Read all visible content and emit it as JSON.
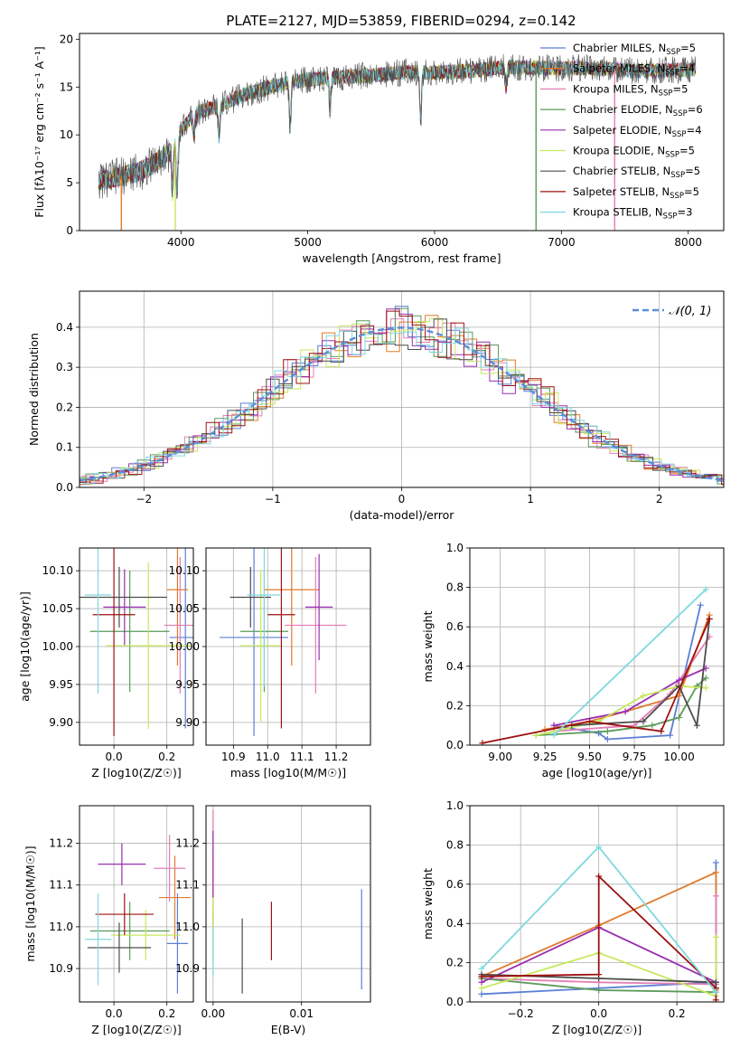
{
  "figure": {
    "title": "PLATE=2127, MJD=53859, FIBERID=0294, z=0.142"
  },
  "series": [
    {
      "name": "Chabrier MILES",
      "nssp": "5",
      "color": "#5b7fd6"
    },
    {
      "name": "Salpeter MILES",
      "nssp": "4",
      "color": "#e07b2d"
    },
    {
      "name": "Kroupa MILES",
      "nssp": "5",
      "color": "#e37fb5"
    },
    {
      "name": "Chabrier ELODIE",
      "nssp": "6",
      "color": "#5a9a5a"
    },
    {
      "name": "Salpeter ELODIE",
      "nssp": "4",
      "color": "#9a2eb0"
    },
    {
      "name": "Kroupa ELODIE",
      "nssp": "5",
      "color": "#c6e85c"
    },
    {
      "name": "Chabrier STELIB",
      "nssp": "5",
      "color": "#4d4d4d"
    },
    {
      "name": "Salpeter STELIB",
      "nssp": "5",
      "color": "#9e1010"
    },
    {
      "name": "Kroupa STELIB",
      "nssp": "3",
      "color": "#7fd8de"
    }
  ],
  "chart_data": [
    {
      "id": "spectrum",
      "type": "line",
      "title": "PLATE=2127, MJD=53859, FIBERID=0294, z=0.142",
      "xlabel": "wavelength [Angstrom, rest frame]",
      "ylabel": "Flux [fλ10⁻¹⁷ erg cm⁻² s⁻¹ A⁻¹]",
      "xlim": [
        3200,
        8280
      ],
      "ylim": [
        0,
        20.6
      ],
      "xticks": [
        4000,
        5000,
        6000,
        7000,
        8000
      ],
      "yticks": [
        0,
        5,
        10,
        15,
        20
      ],
      "continuum": {
        "x": [
          3350,
          3500,
          3700,
          3900,
          4000,
          4100,
          4300,
          4500,
          4700,
          4860,
          5000,
          5200,
          5500,
          5800,
          6000,
          6300,
          6563,
          6800,
          7200,
          7600,
          8000
        ],
        "y": [
          5.2,
          5.6,
          6.3,
          8.0,
          10.4,
          12.2,
          13.0,
          14.2,
          15.0,
          15.5,
          15.8,
          16.0,
          16.2,
          16.6,
          16.5,
          16.7,
          17.1,
          17.0,
          17.0,
          16.7,
          16.8
        ]
      },
      "legend": "upper right"
    },
    {
      "id": "residuals",
      "type": "line",
      "xlabel": "(data-model)/error",
      "ylabel": "Normed distribution",
      "xlim": [
        -2.5,
        2.5
      ],
      "ylim": [
        0,
        0.49
      ],
      "xticks": [
        -2,
        -1,
        0,
        1,
        2
      ],
      "yticks": [
        0.0,
        0.1,
        0.2,
        0.3,
        0.4
      ],
      "gaussian_label": "𝒩(0, 1)",
      "gaussian_color": "#5b8fd9",
      "legend": "upper right"
    },
    {
      "id": "age-vs-Z",
      "type": "scatter",
      "xlabel": "Z [log10(Z/Z☉)]",
      "ylabel": "age [log10(age/yr)]",
      "xlim": [
        -0.13,
        0.3
      ],
      "ylim": [
        9.87,
        10.13
      ],
      "xticks": [
        0.0,
        0.2
      ],
      "yticks": [
        9.9,
        9.95,
        10.0,
        10.05,
        10.1
      ],
      "points": [
        {
          "x": 0.27,
          "y": 10.012,
          "xerr": 0.06,
          "yerr": 0.12
        },
        {
          "x": 0.24,
          "y": 10.075,
          "xerr": 0.04,
          "yerr": 0.1
        },
        {
          "x": 0.25,
          "y": 10.028,
          "xerr": 0.06,
          "yerr": 0.09
        },
        {
          "x": 0.06,
          "y": 10.02,
          "xerr": 0.15,
          "yerr": 0.08
        },
        {
          "x": 0.04,
          "y": 10.052,
          "xerr": 0.08,
          "yerr": 0.05
        },
        {
          "x": 0.13,
          "y": 10.001,
          "xerr": 0.16,
          "yerr": 0.11
        },
        {
          "x": 0.02,
          "y": 10.065,
          "xerr": 0.18,
          "yerr": 0.04
        },
        {
          "x": 0.0,
          "y": 10.042,
          "xerr": 0.08,
          "yerr": 0.16
        },
        {
          "x": -0.06,
          "y": 10.068,
          "xerr": 0.05,
          "yerr": 0.13
        }
      ]
    },
    {
      "id": "age-vs-mass",
      "type": "scatter",
      "xlabel": "mass [log10(M/M☉)]",
      "ylabel": "",
      "xlim": [
        10.82,
        11.3
      ],
      "ylim": [
        9.87,
        10.13
      ],
      "xticks": [
        10.9,
        11.0,
        11.1,
        11.2
      ],
      "yticks": [
        9.9,
        9.95,
        10.0,
        10.05,
        10.1
      ],
      "points": [
        {
          "x": 10.96,
          "y": 10.012,
          "xerr": 0.1,
          "yerr": 0.13
        },
        {
          "x": 11.07,
          "y": 10.075,
          "xerr": 0.08,
          "yerr": 0.1
        },
        {
          "x": 11.14,
          "y": 10.028,
          "xerr": 0.09,
          "yerr": 0.09
        },
        {
          "x": 10.99,
          "y": 10.02,
          "xerr": 0.07,
          "yerr": 0.08
        },
        {
          "x": 11.15,
          "y": 10.052,
          "xerr": 0.04,
          "yerr": 0.07
        },
        {
          "x": 10.98,
          "y": 10.001,
          "xerr": 0.06,
          "yerr": 0.1
        },
        {
          "x": 10.95,
          "y": 10.065,
          "xerr": 0.06,
          "yerr": 0.04
        },
        {
          "x": 11.04,
          "y": 10.042,
          "xerr": 0.04,
          "yerr": 0.15
        },
        {
          "x": 10.99,
          "y": 10.068,
          "xerr": 0.05,
          "yerr": 0.12
        }
      ]
    },
    {
      "id": "weight-vs-age",
      "type": "line",
      "xlabel": "age  [log10(age/yr)]",
      "ylabel": "mass weight",
      "xlim": [
        8.83,
        10.25
      ],
      "ylim": [
        0,
        1
      ],
      "xticks": [
        9.0,
        9.25,
        9.5,
        9.75,
        10.0
      ],
      "yticks": [
        0.0,
        0.2,
        0.4,
        0.6,
        0.8,
        1.0
      ],
      "series": [
        {
          "x": [
            9.3,
            9.55,
            9.6,
            9.95,
            10.12
          ],
          "y": [
            0.1,
            0.06,
            0.03,
            0.05,
            0.71
          ]
        },
        {
          "x": [
            9.25,
            9.5,
            9.7,
            10.0,
            10.17
          ],
          "y": [
            0.08,
            0.12,
            0.17,
            0.25,
            0.66
          ]
        },
        {
          "x": [
            9.3,
            9.75,
            9.95,
            10.17
          ],
          "y": [
            0.07,
            0.1,
            0.26,
            0.55
          ]
        },
        {
          "x": [
            9.2,
            9.6,
            9.85,
            10.0,
            10.1,
            10.15
          ],
          "y": [
            0.05,
            0.07,
            0.1,
            0.14,
            0.3,
            0.34
          ]
        },
        {
          "x": [
            9.3,
            9.7,
            10.0,
            10.15
          ],
          "y": [
            0.1,
            0.17,
            0.33,
            0.39
          ]
        },
        {
          "x": [
            9.2,
            9.55,
            9.8,
            10.0,
            10.15
          ],
          "y": [
            0.05,
            0.12,
            0.25,
            0.3,
            0.29
          ]
        },
        {
          "x": [
            9.4,
            9.8,
            10.0,
            10.1,
            10.17
          ],
          "y": [
            0.1,
            0.12,
            0.3,
            0.1,
            0.64
          ]
        },
        {
          "x": [
            8.9,
            9.5,
            9.9,
            10.17
          ],
          "y": [
            0.01,
            0.12,
            0.07,
            0.64
          ]
        },
        {
          "x": [
            9.3,
            10.15
          ],
          "y": [
            0.05,
            0.79
          ]
        }
      ]
    },
    {
      "id": "mass-vs-Z",
      "type": "scatter",
      "xlabel": "Z [log10(Z/Z☉)]",
      "ylabel": "mass [log10(M/M☉)]",
      "xlim": [
        -0.13,
        0.3
      ],
      "ylim": [
        10.82,
        11.29
      ],
      "xticks": [
        0.0,
        0.2
      ],
      "yticks": [
        10.9,
        11.0,
        11.1,
        11.2
      ],
      "points": [
        {
          "x": 0.24,
          "y": 10.96,
          "xerr": 0.04,
          "yerr": 0.12
        },
        {
          "x": 0.23,
          "y": 11.07,
          "xerr": 0.06,
          "yerr": 0.1
        },
        {
          "x": 0.21,
          "y": 11.14,
          "xerr": 0.06,
          "yerr": 0.08
        },
        {
          "x": 0.06,
          "y": 10.99,
          "xerr": 0.15,
          "yerr": 0.07
        },
        {
          "x": 0.03,
          "y": 11.15,
          "xerr": 0.09,
          "yerr": 0.05
        },
        {
          "x": 0.12,
          "y": 10.98,
          "xerr": 0.13,
          "yerr": 0.06
        },
        {
          "x": 0.02,
          "y": 10.95,
          "xerr": 0.12,
          "yerr": 0.06
        },
        {
          "x": 0.04,
          "y": 11.03,
          "xerr": 0.11,
          "yerr": 0.05
        },
        {
          "x": -0.06,
          "y": 10.97,
          "xerr": 0.05,
          "yerr": 0.11
        }
      ]
    },
    {
      "id": "mass-vs-EBV",
      "type": "scatter",
      "xlabel": "E(B-V)",
      "ylabel": "",
      "xlim": [
        -0.0008,
        0.0178
      ],
      "ylim": [
        10.82,
        11.29
      ],
      "xticks": [
        0.0,
        0.01
      ],
      "yticks": [
        10.9,
        11.0,
        11.1,
        11.2
      ],
      "points": [
        {
          "x": 0.0168,
          "y": 10.97,
          "yerr": 0.12
        },
        {
          "x": 0.0,
          "y": 11.07,
          "yerr": 0.1
        },
        {
          "x": 0.0,
          "y": 11.18,
          "yerr": 0.1
        },
        {
          "x": 0.0,
          "y": 10.98,
          "yerr": 0.06
        },
        {
          "x": 0.0,
          "y": 11.15,
          "yerr": 0.08
        },
        {
          "x": 0.0,
          "y": 10.99,
          "yerr": 0.08
        },
        {
          "x": 0.0033,
          "y": 10.93,
          "yerr": 0.09
        },
        {
          "x": 0.0066,
          "y": 10.99,
          "yerr": 0.07
        },
        {
          "x": 0.0,
          "y": 10.94,
          "yerr": 0.06
        }
      ]
    },
    {
      "id": "weight-vs-Z",
      "type": "line",
      "xlabel": "Z [log10(Z/Z☉)]",
      "ylabel": "mass weight",
      "xlim": [
        -0.33,
        0.32
      ],
      "ylim": [
        0,
        1
      ],
      "xticks": [
        -0.2,
        0.0,
        0.2
      ],
      "yticks": [
        0.0,
        0.2,
        0.4,
        0.6,
        0.8,
        1.0
      ],
      "series": [
        {
          "x": [
            -0.3,
            0.0,
            0.3,
            0.3
          ],
          "y": [
            0.04,
            0.07,
            0.1,
            0.71
          ]
        },
        {
          "x": [
            -0.3,
            0.0,
            0.3,
            0.3
          ],
          "y": [
            0.13,
            0.39,
            0.66,
            0.06
          ]
        },
        {
          "x": [
            -0.3,
            0.0,
            0.3,
            0.3
          ],
          "y": [
            0.12,
            0.1,
            0.09,
            0.54
          ]
        },
        {
          "x": [
            -0.3,
            0.0,
            0.3,
            0.3
          ],
          "y": [
            0.12,
            0.06,
            0.05,
            0.1
          ]
        },
        {
          "x": [
            -0.3,
            0.0,
            0.3,
            0.3
          ],
          "y": [
            0.1,
            0.38,
            0.1,
            0.1
          ]
        },
        {
          "x": [
            -0.3,
            0.0,
            0.3,
            0.3
          ],
          "y": [
            0.07,
            0.25,
            0.03,
            0.33
          ]
        },
        {
          "x": [
            -0.3,
            0.0,
            0.3,
            0.3
          ],
          "y": [
            0.14,
            0.12,
            0.1,
            0.07
          ]
        },
        {
          "x": [
            -0.3,
            0.0,
            0.0,
            0.3,
            0.3
          ],
          "y": [
            0.13,
            0.14,
            0.64,
            0.07,
            0.01
          ]
        },
        {
          "x": [
            -0.3,
            0.0,
            0.3
          ],
          "y": [
            0.17,
            0.79,
            0.05
          ]
        }
      ]
    }
  ]
}
